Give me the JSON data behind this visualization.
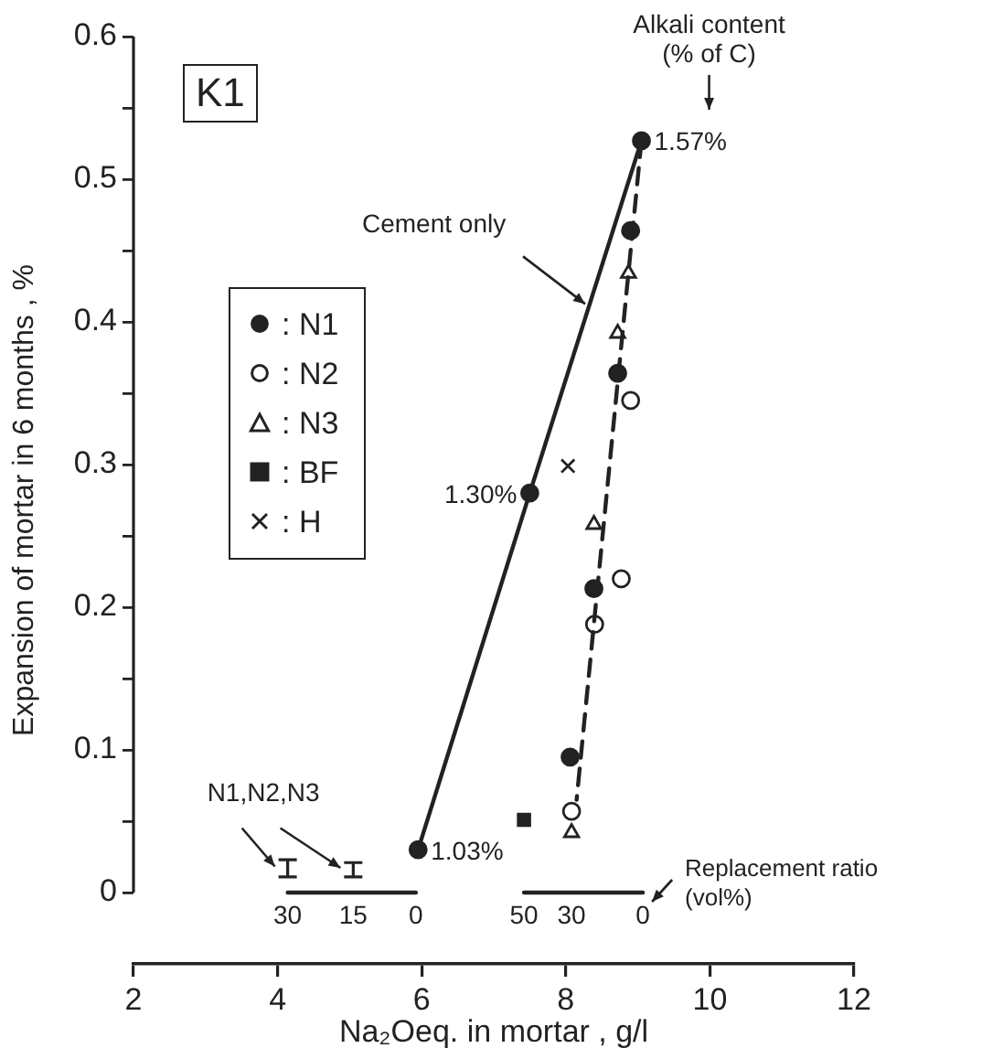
{
  "chart_data": {
    "type": "scatter",
    "xlabel": "Na₂Oeq. in mortar , g/l",
    "ylabel": "Expansion of mortar in 6 months , %",
    "xlim": [
      2,
      12
    ],
    "xticks": [
      2,
      4,
      6,
      8,
      10,
      12
    ],
    "ylim": [
      -0.05,
      0.6
    ],
    "yticks": [
      0,
      {
        "value": 0.05,
        "label": null
      },
      0.1,
      {
        "value": 0.15,
        "label": null
      },
      0.2,
      {
        "value": 0.25,
        "label": null
      },
      0.3,
      {
        "value": 0.35,
        "label": null
      },
      0.4,
      {
        "value": 0.45,
        "label": null
      },
      0.5,
      {
        "value": 0.55,
        "label": null
      },
      0.6
    ],
    "legend": "left",
    "series": [
      {
        "type": "line",
        "color": "#222222",
        "marker": "circle",
        "line_style": "solid",
        "x": [
          5.95,
          7.5,
          9.05
        ],
        "values": [
          0.03,
          0.28,
          0.527
        ]
      },
      {
        "type": "line",
        "color": "#222222",
        "marker": "none",
        "line_style": "dashed",
        "x": [
          9.05,
          8.15
        ],
        "values": [
          0.527,
          0.065
        ]
      },
      {
        "type": "scatter",
        "name": ": N1",
        "color": "#222222",
        "marker": "circle",
        "x": [
          8.9,
          8.72,
          8.39,
          8.06
        ],
        "values": [
          0.464,
          0.364,
          0.213,
          0.095
        ]
      },
      {
        "type": "scatter",
        "name": ": N2",
        "color": "#ffffff",
        "marker": "circle",
        "x": [
          8.9,
          8.77,
          8.4,
          8.08
        ],
        "values": [
          0.345,
          0.22,
          0.188,
          0.057
        ]
      },
      {
        "type": "scatter",
        "name": ": N3",
        "color": "#ffffff",
        "marker": "triangle",
        "x": [
          8.87,
          8.72,
          8.39,
          8.08
        ],
        "values": [
          0.434,
          0.392,
          0.258,
          0.042
        ]
      },
      {
        "type": "scatter",
        "name": ": BF",
        "color": "#222222",
        "marker": "square",
        "x": [
          7.42
        ],
        "values": [
          0.051
        ]
      },
      {
        "type": "scatter",
        "name": ": H",
        "color": "#222222",
        "marker": "cross",
        "x": [
          8.03
        ],
        "values": [
          0.299
        ]
      },
      {
        "type": "scatter",
        "color": "#222222",
        "x": [
          4.14,
          5.05
        ],
        "values": [
          0.017,
          0.016
        ],
        "errors": [
          0.006,
          0.005
        ]
      },
      {
        "type": "line",
        "color": "#222222",
        "marker": "none",
        "line_style": "solid",
        "x": [
          4.14,
          5.05,
          5.92
        ],
        "values": [
          0,
          0,
          0
        ]
      },
      {
        "type": "line",
        "color": "#222222",
        "marker": "none",
        "line_style": "solid",
        "x": [
          7.42,
          8.08,
          9.07
        ],
        "values": [
          0,
          0,
          0
        ]
      }
    ],
    "annotations": [
      "K1",
      {
        "text": "Alkali content (% of C)",
        "x": 9.05,
        "y": 0.527
      },
      {
        "text": "Cement only",
        "x": 8.32,
        "y": 0.41
      },
      {
        "text": "N1,N2,N3",
        "x": 4.14,
        "y": 0.017
      },
      {
        "text": "Replacement ratio (vol%)",
        "x": 9.07,
        "y": 0
      },
      {
        "text": "1.03%",
        "x": 5.95,
        "y": 0.03
      },
      {
        "text": "1.30%",
        "x": 7.5,
        "y": 0.28
      },
      {
        "text": "1.57%",
        "x": 9.05,
        "y": 0.527
      },
      {
        "text": "30",
        "x": 4.14,
        "y": 0
      },
      {
        "text": "15",
        "x": 5.05,
        "y": 0
      },
      {
        "text": "0",
        "x": 5.92,
        "y": 0
      },
      {
        "text": "50",
        "x": 7.42,
        "y": 0
      },
      {
        "text": "30",
        "x": 8.08,
        "y": 0
      },
      {
        "text": "0",
        "x": 9.07,
        "y": 0
      }
    ]
  }
}
